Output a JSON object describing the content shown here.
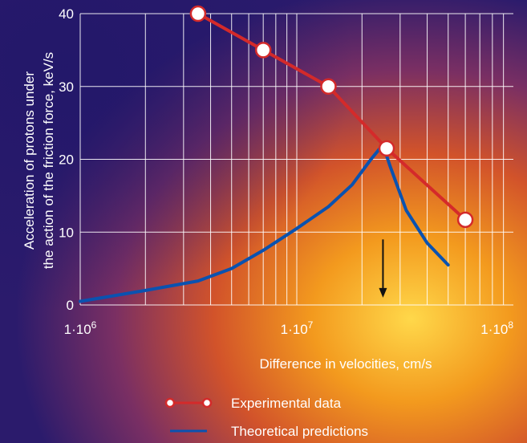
{
  "chart_data": {
    "type": "line",
    "title": "",
    "xlabel": "Difference in velocities, cm/s",
    "ylabel_line1": "Acceleration of protons under",
    "ylabel_line2": "the action of the friction force, keV/s",
    "x_scale": "log",
    "xlim": [
      1000000,
      100000000
    ],
    "ylim": [
      0,
      40
    ],
    "x_ticks": [
      {
        "value": 1000000,
        "mantissa": "1·10",
        "exp": "6"
      },
      {
        "value": 10000000,
        "mantissa": "1·10",
        "exp": "7"
      },
      {
        "value": 100000000,
        "mantissa": "1·10",
        "exp": "8"
      }
    ],
    "y_ticks": [
      {
        "value": 0,
        "label": "0"
      },
      {
        "value": 10,
        "label": "10"
      },
      {
        "value": 20,
        "label": "20"
      },
      {
        "value": 30,
        "label": "30"
      },
      {
        "value": 40,
        "label": "40"
      }
    ],
    "grid": true,
    "legend_position": "bottom-center",
    "series": [
      {
        "name": "Experimental data",
        "color": "#d42a2a",
        "marker": "open-circle",
        "points": [
          {
            "x": 3500000,
            "y": 40
          },
          {
            "x": 7000000,
            "y": 35
          },
          {
            "x": 14000000,
            "y": 30
          },
          {
            "x": 26000000,
            "y": 21.5
          },
          {
            "x": 60000000,
            "y": 11.7
          }
        ]
      },
      {
        "name": "Theoretical predictions",
        "color": "#0a52b0",
        "marker": "none",
        "points": [
          {
            "x": 1000000,
            "y": 0.5
          },
          {
            "x": 2000000,
            "y": 2
          },
          {
            "x": 3500000,
            "y": 3.3
          },
          {
            "x": 5000000,
            "y": 5
          },
          {
            "x": 7000000,
            "y": 7.5
          },
          {
            "x": 10000000,
            "y": 10.5
          },
          {
            "x": 14000000,
            "y": 13.5
          },
          {
            "x": 18000000,
            "y": 16.5
          },
          {
            "x": 22000000,
            "y": 20
          },
          {
            "x": 25000000,
            "y": 22
          },
          {
            "x": 27000000,
            "y": 19
          },
          {
            "x": 32000000,
            "y": 13
          },
          {
            "x": 40000000,
            "y": 8.5
          },
          {
            "x": 50000000,
            "y": 5.5
          }
        ]
      }
    ],
    "annotations": [
      {
        "type": "arrow-down",
        "x": 25000000,
        "y_from": 9,
        "y_to": 1
      }
    ]
  }
}
